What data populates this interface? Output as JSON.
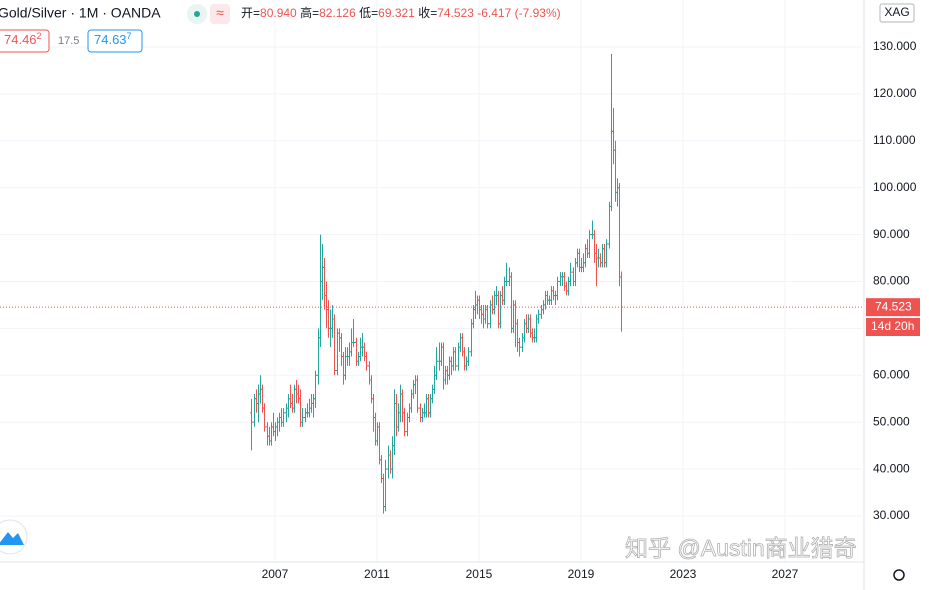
{
  "chart_data": {
    "type": "ohlc",
    "title": "Gold/Silver · 1M · OANDA",
    "legend": [
      {
        "key": "开=",
        "value": "80.940"
      },
      {
        "key": "高=",
        "value": "82.126"
      },
      {
        "key": "低=",
        "value": "69.321"
      },
      {
        "key": "收=",
        "value": "74.523"
      }
    ],
    "change": "-6.417 (-7.93%)",
    "quote": {
      "sell": "74.46",
      "sell_pip": "2",
      "spread": "17.5",
      "buy": "74.63",
      "buy_pip": "7"
    },
    "currency": "XAG",
    "countdown": "14d 20h",
    "up_color": "#26a69a",
    "down_color": "#ef5350",
    "x": [
      2006.08,
      2006.17,
      2006.25,
      2006.33,
      2006.42,
      2006.5,
      2006.58,
      2006.67,
      2006.75,
      2006.83,
      2006.92,
      2007,
      2007.08,
      2007.17,
      2007.25,
      2007.33,
      2007.42,
      2007.5,
      2007.58,
      2007.67,
      2007.75,
      2007.83,
      2007.92,
      2008,
      2008.08,
      2008.17,
      2008.25,
      2008.33,
      2008.42,
      2008.5,
      2008.58,
      2008.67,
      2008.75,
      2008.83,
      2008.92,
      2009,
      2009.08,
      2009.17,
      2009.25,
      2009.33,
      2009.42,
      2009.5,
      2009.58,
      2009.67,
      2009.75,
      2009.83,
      2009.92,
      2010,
      2010.08,
      2010.17,
      2010.25,
      2010.33,
      2010.42,
      2010.5,
      2010.58,
      2010.67,
      2010.75,
      2010.83,
      2010.92,
      2011,
      2011.08,
      2011.17,
      2011.25,
      2011.33,
      2011.42,
      2011.5,
      2011.58,
      2011.67,
      2011.75,
      2011.83,
      2011.92,
      2012,
      2012.08,
      2012.17,
      2012.25,
      2012.33,
      2012.42,
      2012.5,
      2012.58,
      2012.67,
      2012.75,
      2012.83,
      2012.92,
      2013,
      2013.08,
      2013.17,
      2013.25,
      2013.33,
      2013.42,
      2013.5,
      2013.58,
      2013.67,
      2013.75,
      2013.83,
      2013.92,
      2014,
      2014.08,
      2014.17,
      2014.25,
      2014.33,
      2014.42,
      2014.5,
      2014.58,
      2014.67,
      2014.75,
      2014.83,
      2014.92,
      2015,
      2015.08,
      2015.17,
      2015.25,
      2015.33,
      2015.42,
      2015.5,
      2015.58,
      2015.67,
      2015.75,
      2015.83,
      2015.92,
      2016,
      2016.08,
      2016.17,
      2016.25,
      2016.33,
      2016.42,
      2016.5,
      2016.58,
      2016.67,
      2016.75,
      2016.83,
      2016.92,
      2017,
      2017.08,
      2017.17,
      2017.25,
      2017.33,
      2017.42,
      2017.5,
      2017.58,
      2017.67,
      2017.75,
      2017.83,
      2017.92,
      2018,
      2018.08,
      2018.17,
      2018.25,
      2018.33,
      2018.42,
      2018.5,
      2018.58,
      2018.67,
      2018.75,
      2018.83,
      2018.92,
      2019,
      2019.08,
      2019.17,
      2019.25,
      2019.33,
      2019.42,
      2019.5,
      2019.58,
      2019.67,
      2019.75,
      2019.83,
      2019.92,
      2020,
      2020.08,
      2020.17,
      2020.25,
      2020.33,
      2020.42,
      2020.5,
      2020.58
    ],
    "values": [
      [
        52,
        55,
        44,
        50
      ],
      [
        50,
        56,
        49,
        55
      ],
      [
        55,
        57,
        52,
        54
      ],
      [
        54,
        58,
        50,
        56
      ],
      [
        56,
        60,
        54,
        57
      ],
      [
        57,
        58,
        52,
        53
      ],
      [
        53,
        54,
        48,
        49
      ],
      [
        49,
        50,
        45,
        47
      ],
      [
        47,
        49,
        45,
        46
      ],
      [
        46,
        50,
        45,
        49
      ],
      [
        49,
        52,
        47,
        48
      ],
      [
        48,
        50,
        46,
        49
      ],
      [
        49,
        51,
        47,
        50
      ],
      [
        50,
        52,
        48,
        51
      ],
      [
        51,
        53,
        49,
        50
      ],
      [
        50,
        53,
        49,
        52
      ],
      [
        52,
        54,
        50,
        53
      ],
      [
        53,
        56,
        51,
        55
      ],
      [
        55,
        58,
        53,
        54
      ],
      [
        54,
        56,
        52,
        53
      ],
      [
        53,
        58,
        52,
        57
      ],
      [
        57,
        59,
        54,
        56
      ],
      [
        56,
        58,
        54,
        55
      ],
      [
        55,
        57,
        49,
        50
      ],
      [
        50,
        53,
        49,
        51
      ],
      [
        51,
        53,
        50,
        52
      ],
      [
        52,
        54,
        51,
        52
      ],
      [
        52,
        55,
        51,
        53
      ],
      [
        53,
        56,
        52,
        54
      ],
      [
        54,
        56,
        51,
        55
      ],
      [
        55,
        61,
        53,
        60
      ],
      [
        60,
        70,
        58,
        68
      ],
      [
        68,
        90,
        66,
        80
      ],
      [
        80,
        88,
        76,
        83
      ],
      [
        83,
        85,
        74,
        77
      ],
      [
        77,
        80,
        70,
        74
      ],
      [
        74,
        76,
        68,
        70
      ],
      [
        70,
        74,
        66,
        70
      ],
      [
        70,
        75,
        68,
        72
      ],
      [
        72,
        73,
        60,
        61
      ],
      [
        61,
        70,
        60,
        69
      ],
      [
        69,
        70,
        65,
        68
      ],
      [
        68,
        69,
        62,
        64
      ],
      [
        64,
        65,
        58,
        60
      ],
      [
        60,
        66,
        59,
        64
      ],
      [
        64,
        66,
        62,
        64
      ],
      [
        64,
        67,
        62,
        65
      ],
      [
        65,
        70,
        64,
        67
      ],
      [
        67,
        72,
        66,
        67
      ],
      [
        67,
        68,
        62,
        63
      ],
      [
        63,
        65,
        62,
        64
      ],
      [
        64,
        68,
        63,
        66
      ],
      [
        66,
        69,
        64,
        66
      ],
      [
        66,
        67,
        63,
        64
      ],
      [
        64,
        65,
        61,
        62
      ],
      [
        62,
        63,
        58,
        59
      ],
      [
        59,
        60,
        54,
        55
      ],
      [
        55,
        56,
        48,
        51
      ],
      [
        51,
        52,
        45,
        46
      ],
      [
        46,
        50,
        45,
        49
      ],
      [
        49,
        50,
        41,
        42
      ],
      [
        42,
        43,
        37,
        38
      ],
      [
        38,
        39,
        30.5,
        32
      ],
      [
        32,
        42,
        31,
        40
      ],
      [
        40,
        45,
        38,
        43
      ],
      [
        43,
        44,
        39,
        40
      ],
      [
        40,
        47,
        38,
        45
      ],
      [
        45,
        57,
        43,
        54
      ],
      [
        54,
        56,
        47,
        49
      ],
      [
        49,
        54,
        48,
        52
      ],
      [
        52,
        58,
        50,
        56
      ],
      [
        56,
        57,
        50,
        52
      ],
      [
        52,
        53,
        47,
        48
      ],
      [
        48,
        52,
        47,
        51
      ],
      [
        51,
        54,
        50,
        53
      ],
      [
        53,
        57,
        52,
        56
      ],
      [
        56,
        59,
        55,
        58
      ],
      [
        58,
        60,
        56,
        59
      ],
      [
        59,
        60,
        52,
        53
      ],
      [
        53,
        54,
        50,
        51
      ],
      [
        51,
        53,
        50,
        52
      ],
      [
        52,
        54,
        51,
        52
      ],
      [
        52,
        56,
        51,
        55
      ],
      [
        55,
        56,
        51,
        52
      ],
      [
        52,
        56,
        51,
        55
      ],
      [
        55,
        58,
        54,
        57
      ],
      [
        57,
        62,
        56,
        60
      ],
      [
        60,
        66,
        59,
        63
      ],
      [
        63,
        67,
        61,
        63
      ],
      [
        63,
        67,
        62,
        66
      ],
      [
        66,
        67,
        57,
        59
      ],
      [
        59,
        62,
        58,
        61
      ],
      [
        61,
        62,
        58,
        60
      ],
      [
        60,
        64,
        59,
        63
      ],
      [
        63,
        64,
        60,
        62
      ],
      [
        62,
        66,
        61,
        65
      ],
      [
        65,
        66,
        61,
        62
      ],
      [
        62,
        67,
        61,
        66
      ],
      [
        66,
        69,
        65,
        68
      ],
      [
        68,
        69,
        64,
        65
      ],
      [
        65,
        66,
        61,
        62
      ],
      [
        62,
        64,
        61,
        63
      ],
      [
        63,
        66,
        62,
        65
      ],
      [
        65,
        72,
        64,
        71
      ],
      [
        71,
        75,
        70,
        74
      ],
      [
        74,
        78,
        72,
        75
      ],
      [
        75,
        77,
        73,
        76
      ],
      [
        76,
        77,
        72,
        74
      ],
      [
        74,
        75,
        71,
        73
      ],
      [
        73,
        75,
        70,
        72
      ],
      [
        72,
        75,
        71,
        74
      ],
      [
        74,
        75,
        70,
        71
      ],
      [
        71,
        76,
        70,
        75
      ],
      [
        75,
        77,
        73,
        74
      ],
      [
        74,
        78,
        73,
        77
      ],
      [
        77,
        79,
        75,
        77
      ],
      [
        77,
        78,
        70,
        71
      ],
      [
        71,
        78,
        70,
        77
      ],
      [
        77,
        79,
        75,
        76
      ],
      [
        76,
        81,
        75,
        80
      ],
      [
        80,
        84,
        79,
        80
      ],
      [
        80,
        83,
        79,
        81
      ],
      [
        81,
        82,
        69,
        70
      ],
      [
        70,
        76,
        69,
        75
      ],
      [
        75,
        76,
        66,
        71
      ],
      [
        71,
        72,
        65,
        67
      ],
      [
        67,
        68,
        64,
        66
      ],
      [
        66,
        69,
        65,
        68
      ],
      [
        68,
        72,
        67,
        71
      ],
      [
        71,
        73,
        69,
        70
      ],
      [
        70,
        73,
        69,
        72
      ],
      [
        72,
        73,
        68,
        69
      ],
      [
        69,
        70,
        67,
        68
      ],
      [
        68,
        70,
        67,
        68
      ],
      [
        68,
        73,
        67,
        72
      ],
      [
        72,
        74,
        71,
        73
      ],
      [
        73,
        75,
        72,
        74
      ],
      [
        74,
        76,
        73,
        75
      ],
      [
        75,
        78,
        74,
        77
      ],
      [
        77,
        78,
        75,
        76
      ],
      [
        76,
        77,
        75,
        76
      ],
      [
        76,
        79,
        75,
        78
      ],
      [
        78,
        79,
        76,
        77
      ],
      [
        77,
        78,
        75,
        77
      ],
      [
        77,
        81,
        76,
        80
      ],
      [
        80,
        82,
        79,
        81
      ],
      [
        81,
        82,
        79,
        81
      ],
      [
        81,
        82,
        78,
        79
      ],
      [
        79,
        80,
        77,
        78
      ],
      [
        78,
        81,
        77,
        80
      ],
      [
        80,
        84,
        79,
        82
      ],
      [
        82,
        83,
        79,
        80
      ],
      [
        80,
        85,
        79,
        84
      ],
      [
        84,
        87,
        83,
        86
      ],
      [
        86,
        87,
        82,
        83
      ],
      [
        83,
        85,
        82,
        83
      ],
      [
        83,
        86,
        82,
        84
      ],
      [
        84,
        88,
        83,
        87
      ],
      [
        87,
        89,
        85,
        86
      ],
      [
        86,
        91,
        85,
        90
      ],
      [
        90,
        93,
        89,
        90
      ],
      [
        90,
        91,
        84,
        86
      ],
      [
        86,
        88,
        79,
        85
      ],
      [
        85,
        87,
        83,
        85
      ],
      [
        85,
        86,
        83,
        84
      ],
      [
        84,
        88,
        83,
        87
      ],
      [
        87,
        88,
        83,
        84
      ],
      [
        84,
        89,
        83,
        88
      ],
      [
        88,
        97,
        87,
        96
      ],
      [
        96,
        128.5,
        95,
        112
      ],
      [
        112,
        117,
        105,
        108
      ],
      [
        108,
        110,
        97,
        99
      ],
      [
        99,
        102,
        96,
        100
      ],
      [
        100,
        101,
        79,
        80.94
      ],
      [
        80.94,
        82.126,
        69.321,
        74.523
      ]
    ],
    "xlim": [
      1996.22,
      2030.02
    ],
    "xticks": [
      2007,
      2011,
      2015,
      2019,
      2023,
      2027
    ],
    "ylim": [
      20.19,
      140.02
    ],
    "yticks": [
      {
        "value": 30,
        "label": "30.000"
      },
      {
        "value": 40,
        "label": "40.000"
      },
      {
        "value": 50,
        "label": "50.000"
      },
      {
        "value": 60,
        "label": "60.000"
      },
      {
        "value": 70,
        "label": "70.000"
      },
      {
        "value": 80,
        "label": "80.000"
      },
      {
        "value": 90,
        "label": "90.000"
      },
      {
        "value": 100,
        "label": "100.000"
      },
      {
        "value": 110,
        "label": "110.000"
      },
      {
        "value": 120,
        "label": "120.000"
      },
      {
        "value": 130,
        "label": "130.000"
      }
    ],
    "grid": true
  },
  "watermark": "知乎 @Austin商业猎奇"
}
